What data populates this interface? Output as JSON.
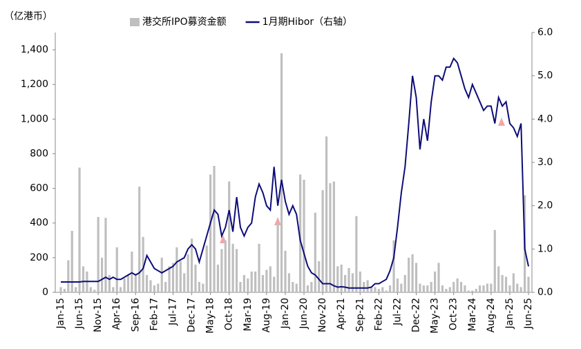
{
  "chart_data": {
    "type": "bar-line",
    "y_label": "（亿港币）",
    "categories": [
      "Jan-15",
      null,
      null,
      null,
      null,
      "Jun-15",
      null,
      null,
      null,
      null,
      "Nov-15",
      null,
      null,
      null,
      null,
      "Apr-16",
      null,
      null,
      null,
      null,
      "Sep-16",
      null,
      null,
      null,
      null,
      "Feb-17",
      null,
      null,
      null,
      null,
      "Jul-17",
      null,
      null,
      null,
      null,
      "Dec-17",
      null,
      null,
      null,
      null,
      "May-18",
      null,
      null,
      null,
      null,
      "Oct-18",
      null,
      null,
      null,
      null,
      "Mar-19",
      null,
      null,
      null,
      null,
      "Aug-19",
      null,
      null,
      null,
      null,
      "Jan-20",
      null,
      null,
      null,
      null,
      "Jun-20",
      null,
      null,
      null,
      null,
      "Nov-20",
      null,
      null,
      null,
      null,
      "Apr-21",
      null,
      null,
      null,
      null,
      "Sep-21",
      null,
      null,
      null,
      null,
      "Feb-22",
      null,
      null,
      null,
      null,
      "Jul-22",
      null,
      null,
      null,
      null,
      "Dec-22",
      null,
      null,
      null,
      null,
      "May-23",
      null,
      null,
      null,
      null,
      "Oct-23",
      null,
      null,
      null,
      null,
      "Mar-24",
      null,
      null,
      null,
      null,
      "Aug-24",
      null,
      null,
      null,
      null,
      "Jan-25",
      null,
      null,
      null,
      null,
      "Jun-25"
    ],
    "series": [
      {
        "name": "港交所IPO募资金额",
        "kind": "bar",
        "color": "#bfbfbf",
        "axis": "y",
        "values": [
          30,
          20,
          185,
          355,
          30,
          720,
          150,
          120,
          30,
          15,
          435,
          200,
          430,
          100,
          30,
          260,
          30,
          80,
          100,
          235,
          100,
          610,
          320,
          100,
          70,
          40,
          50,
          200,
          60,
          150,
          170,
          260,
          180,
          110,
          220,
          310,
          160,
          60,
          50,
          270,
          680,
          730,
          160,
          250,
          300,
          640,
          280,
          250,
          60,
          100,
          80,
          120,
          120,
          280,
          100,
          130,
          150,
          90,
          400,
          1380,
          240,
          110,
          60,
          50,
          680,
          650,
          40,
          60,
          460,
          180,
          590,
          900,
          630,
          640,
          150,
          160,
          100,
          140,
          110,
          440,
          120,
          60,
          70,
          30,
          30,
          20,
          30,
          10,
          40,
          300,
          80,
          50,
          100,
          200,
          220,
          170,
          50,
          40,
          40,
          60,
          120,
          170,
          40,
          20,
          30,
          60,
          80,
          60,
          40,
          10,
          10,
          20,
          40,
          40,
          50,
          50,
          360,
          150,
          100,
          90,
          40,
          110,
          50,
          30,
          560,
          90
        ]
      },
      {
        "name": "1月期Hibor（右轴）",
        "kind": "line",
        "color": "#0c0c78",
        "axis": "y2",
        "values": [
          0.24,
          0.24,
          0.24,
          0.24,
          0.24,
          0.24,
          0.25,
          0.25,
          0.25,
          0.25,
          0.25,
          0.3,
          0.35,
          0.3,
          0.35,
          0.3,
          0.3,
          0.35,
          0.4,
          0.45,
          0.4,
          0.45,
          0.55,
          0.85,
          0.7,
          0.55,
          0.5,
          0.45,
          0.5,
          0.55,
          0.6,
          0.7,
          0.75,
          0.8,
          1.0,
          1.1,
          1.0,
          0.7,
          1.0,
          1.3,
          1.6,
          1.9,
          1.8,
          1.3,
          1.5,
          1.9,
          1.4,
          2.2,
          1.5,
          1.3,
          1.5,
          1.6,
          2.2,
          2.5,
          2.3,
          2.0,
          1.9,
          2.9,
          2.0,
          2.6,
          2.1,
          1.8,
          2.0,
          1.8,
          1.2,
          0.9,
          0.6,
          0.45,
          0.4,
          0.3,
          0.2,
          0.2,
          0.2,
          0.15,
          0.12,
          0.13,
          0.12,
          0.1,
          0.1,
          0.1,
          0.1,
          0.1,
          0.1,
          0.12,
          0.2,
          0.2,
          0.25,
          0.3,
          0.5,
          0.8,
          1.5,
          2.3,
          2.9,
          3.9,
          5.0,
          4.5,
          3.3,
          4.0,
          3.5,
          4.4,
          5.0,
          5.0,
          4.9,
          5.2,
          5.2,
          5.4,
          5.3,
          5.0,
          4.7,
          4.5,
          4.8,
          4.6,
          4.4,
          4.2,
          4.3,
          4.3,
          3.9,
          4.5,
          4.3,
          4.4,
          3.9,
          3.8,
          3.6,
          3.9,
          1.0,
          0.6
        ]
      }
    ],
    "ylim": [
      0,
      1500
    ],
    "yticks": [
      0,
      200,
      400,
      600,
      800,
      {
        "value": 1000,
        "label": "1,000"
      },
      {
        "value": 1200,
        "label": "1,200"
      },
      {
        "value": 1400,
        "label": "1,400"
      }
    ],
    "y2lim": [
      0,
      6
    ],
    "y2ticks": [
      {
        "value": 0,
        "label": "0.0"
      },
      {
        "value": 1,
        "label": "1.0"
      },
      {
        "value": 2,
        "label": "2.0"
      },
      {
        "value": 3,
        "label": "3.0"
      },
      {
        "value": 4,
        "label": "4.0"
      },
      {
        "value": 5,
        "label": "5.0"
      },
      {
        "value": 6,
        "label": "6.0"
      }
    ]
  }
}
